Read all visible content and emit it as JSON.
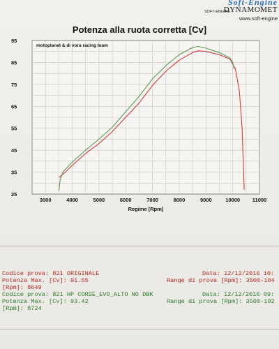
{
  "header": {
    "brand_top": "Soft-Engine",
    "brand_name": "DYNAMOMET",
    "brand_mark": "SOFT-ENGINE",
    "website": "www.soft-engine"
  },
  "chart_data": {
    "type": "line",
    "title": "Potenza alla ruota corretta [Cv]",
    "subtitle": "motoplanet & di vora racing team",
    "xlabel": "Regime [Rpm]",
    "ylabel": "",
    "xlim": [
      2500,
      11000
    ],
    "ylim": [
      25,
      95
    ],
    "xticks": [
      3000,
      4000,
      5000,
      6000,
      7000,
      8000,
      9000,
      10000,
      11000
    ],
    "yticks": [
      25,
      35,
      45,
      55,
      65,
      75,
      85,
      95
    ],
    "grid": true,
    "series": [
      {
        "color": "#d8383c",
        "x": [
          3500,
          3700,
          4000,
          4500,
          5000,
          5500,
          6000,
          6500,
          7000,
          7500,
          8000,
          8500,
          8700,
          9000,
          9500,
          9900,
          10100,
          10250,
          10350,
          10430
        ],
        "y": [
          32.5,
          34.5,
          38.0,
          43.5,
          48.0,
          53.5,
          60.0,
          66.5,
          74.5,
          81.0,
          86.0,
          89.5,
          90.3,
          90.0,
          88.5,
          86.5,
          82.0,
          72.0,
          55.0,
          27.0
        ]
      },
      {
        "color": "#5a9a52",
        "x": [
          3500,
          3550,
          3650,
          4000,
          4500,
          5000,
          5500,
          6000,
          6500,
          7000,
          7500,
          8000,
          8500,
          8700,
          9000,
          9500,
          9900,
          10000,
          10050
        ],
        "y": [
          26.5,
          31.5,
          35.0,
          39.5,
          45.0,
          50.0,
          55.5,
          62.5,
          69.5,
          77.5,
          83.5,
          88.5,
          91.8,
          92.3,
          91.5,
          89.5,
          87.0,
          85.0,
          82.0
        ]
      }
    ]
  },
  "info": {
    "r1_left": "Codice prova: 821 ORIGINALE",
    "r1_right": "Data: 12/12/2016 10:",
    "r2_left": "Potenza Max.         [Cv]: 91.55",
    "r2_right": "Range di prova [Rpm]: 3500-104",
    "r3_left": "                    [Rpm]: 8649",
    "r4_left": "Codice prova: 821 HP CORSE_EVO_ALTO NO DBK",
    "r4_right": "Data: 12/12/2016 09:",
    "r5_left": "Potenza Max.         [Cv]: 93.42",
    "r5_right": "Range di prova [Rpm]: 3500-102",
    "r6_left": "                    [Rpm]: 8724"
  }
}
